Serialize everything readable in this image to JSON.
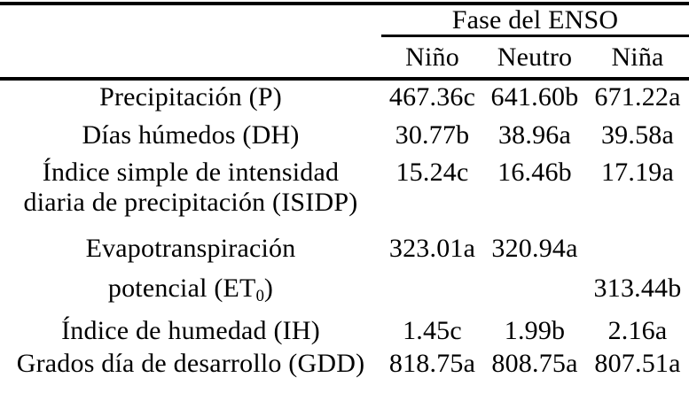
{
  "colors": {
    "text": "#000000",
    "background": "#ffffff",
    "rule": "#000000"
  },
  "table": {
    "group_header": "Fase del ENSO",
    "col_headers": [
      "Niño",
      "Neutro",
      "Niña"
    ],
    "rows": [
      {
        "label1": "Precipitación (P)",
        "v1": "467.36c",
        "v2": "641.60b",
        "v3": "671.22a"
      },
      {
        "label1": "Días húmedos (DH)",
        "v1": "30.77b",
        "v2": "38.96a",
        "v3": "39.58a"
      },
      {
        "label1": "Índice simple de intensidad",
        "label2": "diaria de precipitación (ISIDP)",
        "v1": "15.24c",
        "v2": "16.46b",
        "v3": "17.19a"
      },
      {
        "label1": "Evapotranspiración",
        "label2_pre": "potencial (ET",
        "label2_sub": "0",
        "label2_post": ")",
        "v1": "323.01a",
        "v2": "320.94a",
        "v3_line2": "313.44b"
      },
      {
        "label1": "Índice de humedad (IH)",
        "v1": "1.45c",
        "v2": "1.99b",
        "v3": "2.16a"
      },
      {
        "label1": "Grados día de desarrollo (GDD)",
        "v1": "818.75a",
        "v2": "808.75a",
        "v3": "807.51a"
      }
    ]
  }
}
